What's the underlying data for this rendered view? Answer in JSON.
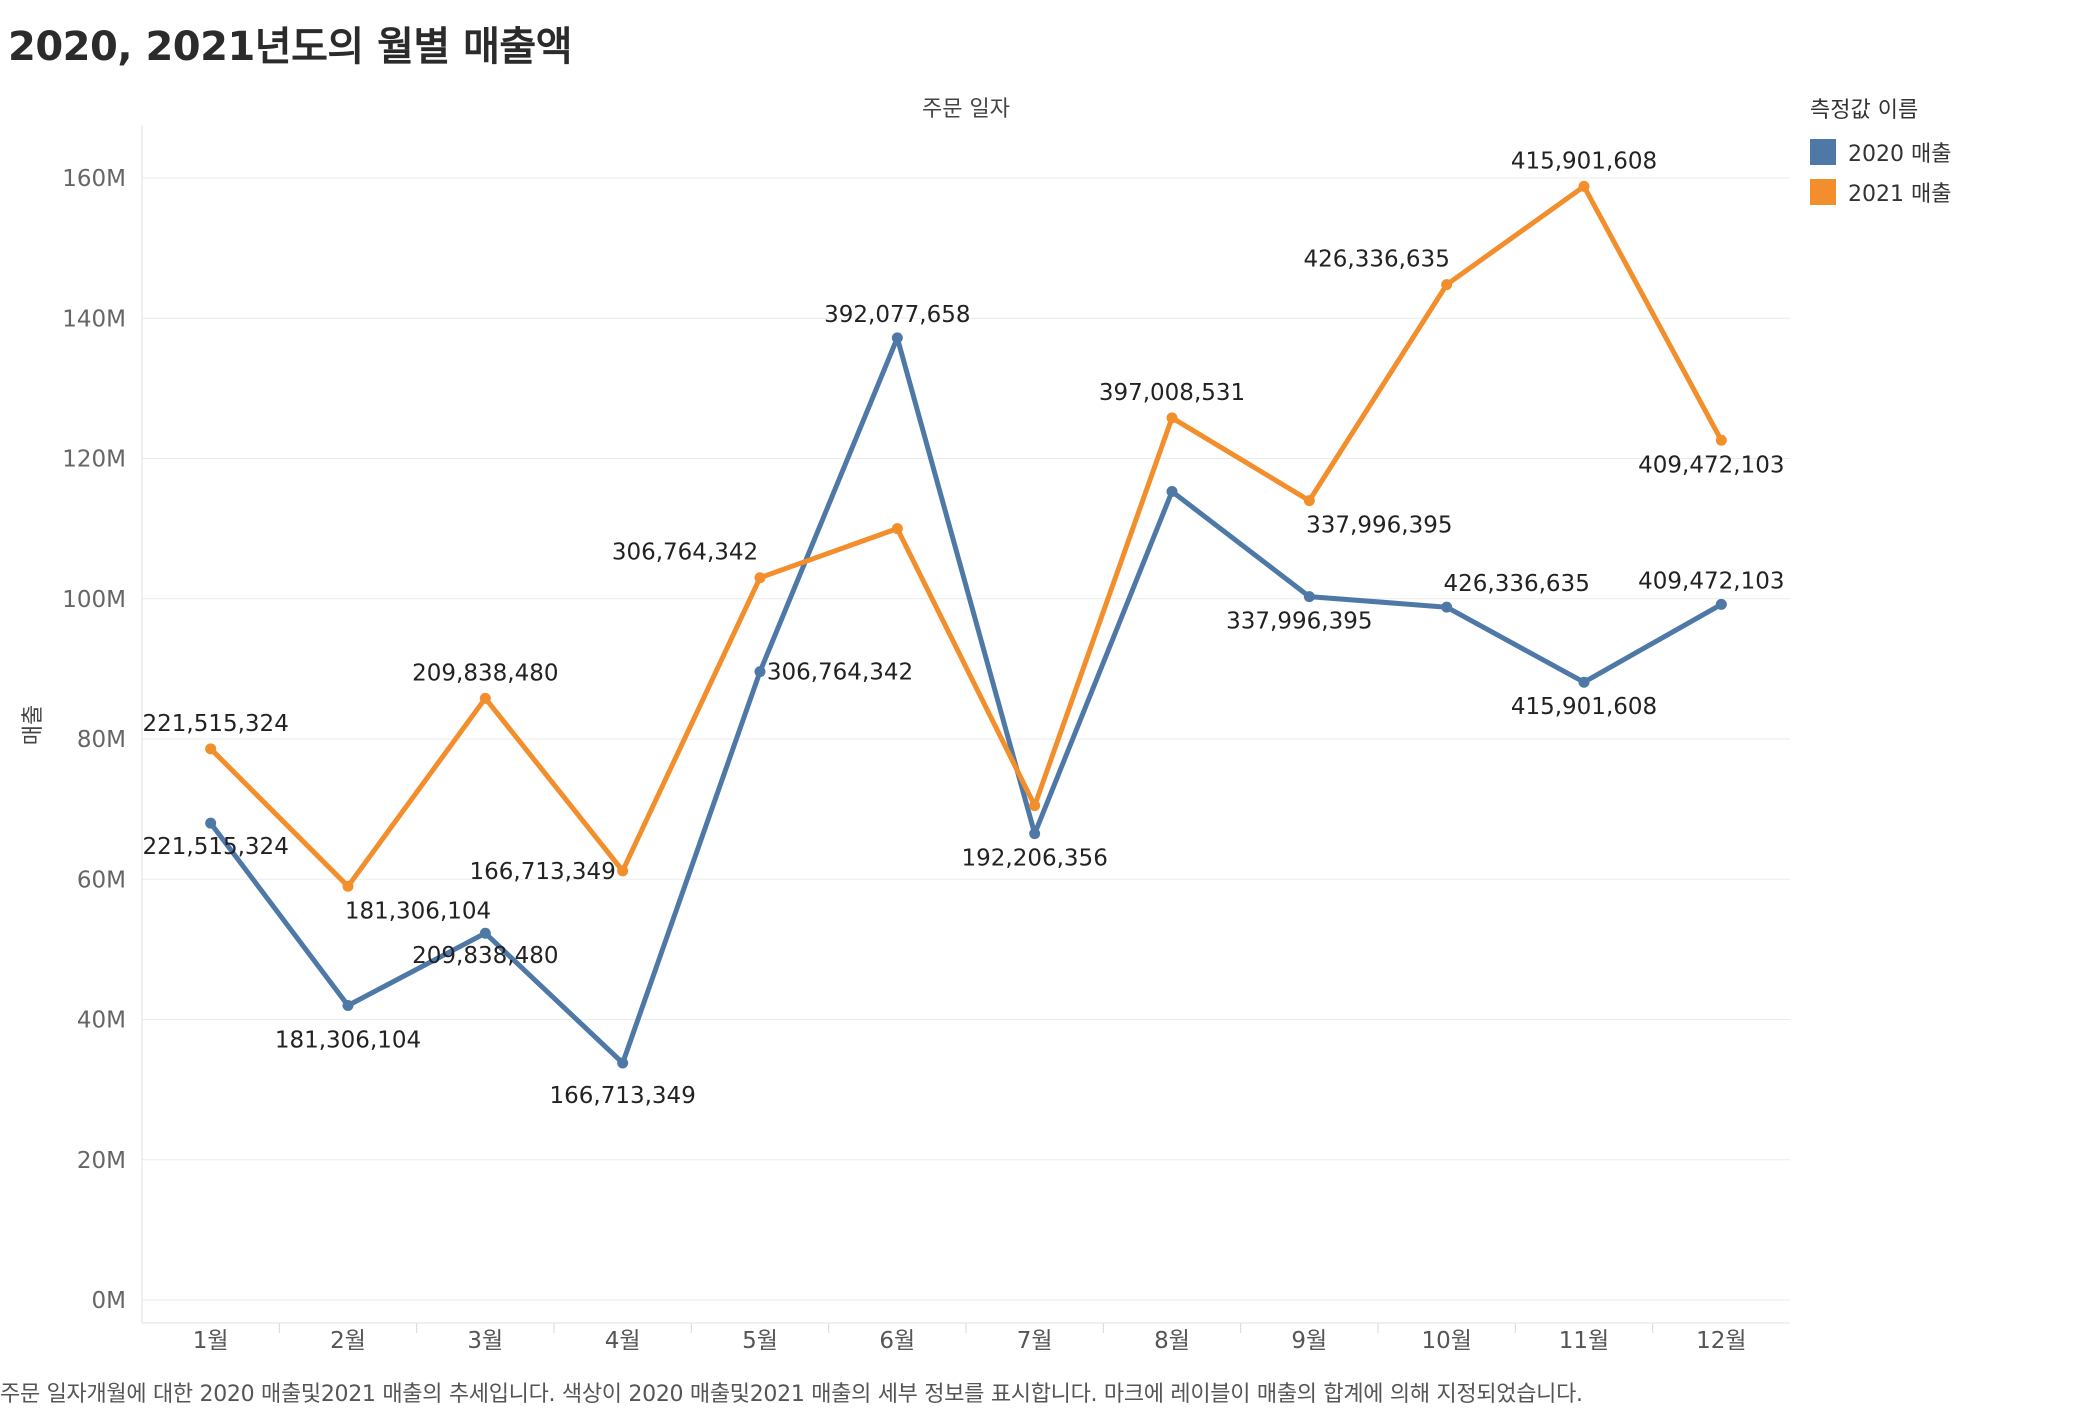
{
  "title": "2020, 2021년도의 월별 매출액",
  "caption": "주문 일자개월에 대한 2020 매출및2021 매출의 추세입니다. 색상이 2020 매출및2021 매출의 세부 정보를 표시합니다. 마크에 레이블이 매출의 합계에 의해 지정되었습니다.",
  "legend": {
    "title": "측정값 이름",
    "position": "top-right",
    "items": [
      {
        "label": "2020 매출",
        "color": "#4e79a7"
      },
      {
        "label": "2021 매출",
        "color": "#f28e2b"
      }
    ]
  },
  "chart_data": {
    "type": "line",
    "xlabel": "주문 일자",
    "ylabel": "매출",
    "ylim": [
      0,
      160000000
    ],
    "yticks": [
      {
        "value": 0,
        "label": "0M"
      },
      {
        "value": 20000000,
        "label": "20M"
      },
      {
        "value": 40000000,
        "label": "40M"
      },
      {
        "value": 60000000,
        "label": "60M"
      },
      {
        "value": 80000000,
        "label": "80M"
      },
      {
        "value": 100000000,
        "label": "100M"
      },
      {
        "value": 120000000,
        "label": "120M"
      },
      {
        "value": 140000000,
        "label": "140M"
      },
      {
        "value": 160000000,
        "label": "160M"
      }
    ],
    "categories": [
      "1월",
      "2월",
      "3월",
      "4월",
      "5월",
      "6월",
      "7월",
      "8월",
      "9월",
      "10월",
      "11월",
      "12월"
    ],
    "grid": true,
    "series": [
      {
        "name": "2020 매출",
        "color": "#4e79a7",
        "values": [
          68000000,
          42000000,
          52300000,
          33800000,
          89600000,
          137200000,
          66500000,
          115300000,
          100300000,
          98800000,
          88100000,
          99200000
        ],
        "labels": [
          "221,515,324",
          "181,306,104",
          "209,838,480",
          "166,713,349",
          "306,764,342",
          "392,077,658",
          "192,206,356",
          "",
          "337,996,395",
          "426,336,635",
          "415,901,608",
          "409,472,103"
        ]
      },
      {
        "name": "2021 매출",
        "color": "#f28e2b",
        "values": [
          78600000,
          59000000,
          85800000,
          61200000,
          103000000,
          110000000,
          70500000,
          125800000,
          114000000,
          144800000,
          158800000,
          122600000
        ],
        "labels": [
          "221,515,324",
          "181,306,104",
          "209,838,480",
          "166,713,349",
          "306,764,342",
          "",
          "",
          "397,008,531",
          "337,996,395",
          "426,336,635",
          "415,901,608",
          "409,472,103"
        ]
      }
    ]
  }
}
